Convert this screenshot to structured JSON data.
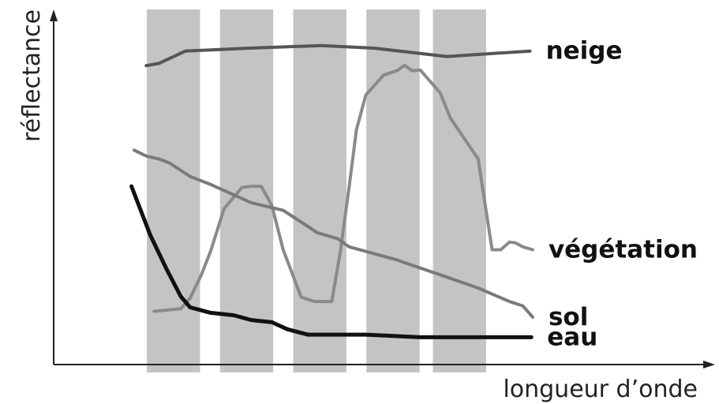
{
  "chart_data": {
    "type": "line",
    "xlabel": "longueur d’onde",
    "ylabel": "réflectance",
    "x_ticks": [],
    "y_ticks": [],
    "grid": false,
    "xlim": [
      0,
      100
    ],
    "ylim": [
      0,
      100
    ],
    "bands": [
      {
        "x0": 14,
        "x1": 22
      },
      {
        "x0": 25,
        "x1": 33
      },
      {
        "x0": 36,
        "x1": 44
      },
      {
        "x0": 47,
        "x1": 55
      },
      {
        "x0": 57,
        "x1": 65
      }
    ],
    "series": [
      {
        "name": "neige",
        "color": "#555555",
        "width": 4,
        "x": [
          13.9,
          15.8,
          19.8,
          29.5,
          40.2,
          48.1,
          59.1,
          71.6
        ],
        "y": [
          82.0,
          82.6,
          86.0,
          86.8,
          87.5,
          86.8,
          84.5,
          86.0
        ]
      },
      {
        "name": "végétation",
        "color": "#8a8a8a",
        "width": 4,
        "x": [
          15.1,
          19.1,
          20.5,
          22.2,
          23.6,
          25.6,
          28.3,
          29.7,
          31.2,
          32.8,
          34.5,
          37.2,
          39.2,
          41.8,
          43.1,
          44.4,
          45.5,
          46.9,
          49.6,
          51.7,
          52.7,
          53.9,
          55.1,
          58.1,
          59.6,
          63.8,
          65.9,
          67.2,
          68.5,
          69.4,
          70.5,
          72.0
        ],
        "y": [
          14.6,
          15.3,
          18.2,
          24.6,
          31.1,
          42.7,
          48.6,
          48.9,
          48.9,
          43.6,
          31.5,
          18.5,
          17.3,
          17.3,
          31.1,
          48.6,
          64.4,
          73.9,
          79.4,
          80.7,
          82.1,
          80.6,
          80.8,
          74.5,
          67.7,
          56.4,
          31.5,
          31.5,
          33.6,
          33.4,
          32.3,
          31.5
        ]
      },
      {
        "name": "sol",
        "color": "#7a7a7a",
        "width": 4,
        "x": [
          12.1,
          13.9,
          15.8,
          17.4,
          20.5,
          23.6,
          29.7,
          34.5,
          38.2,
          39.6,
          42.7,
          44.4,
          51.4,
          58.1,
          63.8,
          68.5,
          70.5,
          72.0
        ],
        "y": [
          58.8,
          57.2,
          56.4,
          55.3,
          51.6,
          49.4,
          44.4,
          42.3,
          37.9,
          36.2,
          34.5,
          32.3,
          28.8,
          24.6,
          21.0,
          17.3,
          16.1,
          13.0
        ]
      },
      {
        "name": "eau",
        "color": "#111111",
        "width": 5,
        "x": [
          11.7,
          14.5,
          16.9,
          19.1,
          20.5,
          23.6,
          27.1,
          29.7,
          32.8,
          35.1,
          38.2,
          42.7,
          46.9,
          51.7,
          55.1,
          58.1,
          63.8,
          68.5,
          71.8
        ],
        "y": [
          48.9,
          35.6,
          26.4,
          18.7,
          15.7,
          14.2,
          13.5,
          12.2,
          11.6,
          9.7,
          8.2,
          8.2,
          8.2,
          7.8,
          7.5,
          7.5,
          7.5,
          7.5,
          7.5
        ]
      }
    ]
  }
}
